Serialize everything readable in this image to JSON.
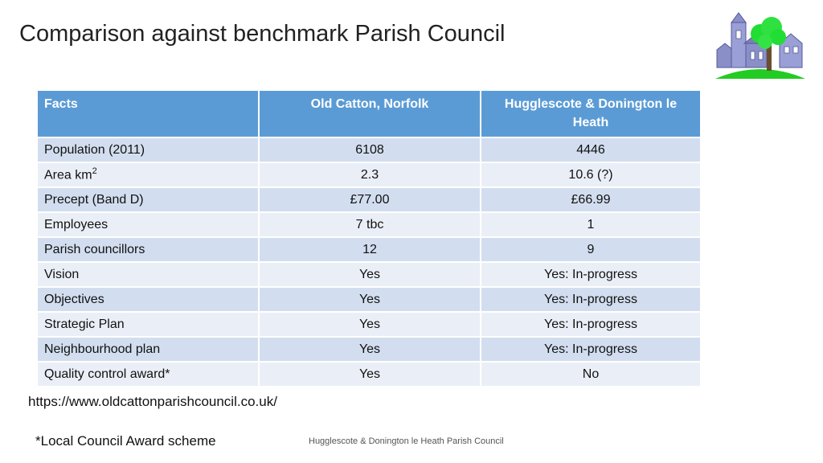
{
  "slide": {
    "title": "Comparison against benchmark Parish Council",
    "url": "https://www.oldcattonparishcouncil.co.uk/",
    "note": "*Local Council Award scheme",
    "footer": "Hugglescote & Donington le Heath Parish Council"
  },
  "logo": {
    "icon": "parish-council-logo-icon",
    "colors": {
      "building": "#8a8fc8",
      "tree": "#22dd33",
      "field": "#22cc22"
    }
  },
  "table": {
    "headers": [
      "Facts",
      "Old Catton, Norfolk",
      "Hugglescote & Donington le Heath"
    ],
    "rows": [
      {
        "fact": "Population (2011)",
        "old_catton": "6108",
        "hugglescote": "4446"
      },
      {
        "fact": "Area km",
        "fact_sup": "2",
        "old_catton": "2.3",
        "hugglescote": "10.6 (?)"
      },
      {
        "fact": "Precept (Band D)",
        "old_catton": "£77.00",
        "hugglescote": "£66.99"
      },
      {
        "fact": "Employees",
        "old_catton": "7 tbc",
        "hugglescote": "1"
      },
      {
        "fact": "Parish councillors",
        "old_catton": "12",
        "hugglescote": "9"
      },
      {
        "fact": "Vision",
        "old_catton": "Yes",
        "hugglescote": "Yes: In-progress"
      },
      {
        "fact": "Objectives",
        "old_catton": "Yes",
        "hugglescote": "Yes: In-progress"
      },
      {
        "fact": "Strategic Plan",
        "old_catton": "Yes",
        "hugglescote": "Yes: In-progress"
      },
      {
        "fact": "Neighbourhood plan",
        "old_catton": "Yes",
        "hugglescote": "Yes: In-progress"
      },
      {
        "fact": "Quality control award*",
        "old_catton": "Yes",
        "hugglescote": "No"
      }
    ]
  },
  "colors": {
    "header_bg": "#5b9bd5",
    "row_odd": "#d2deef",
    "row_even": "#eaeff7"
  }
}
